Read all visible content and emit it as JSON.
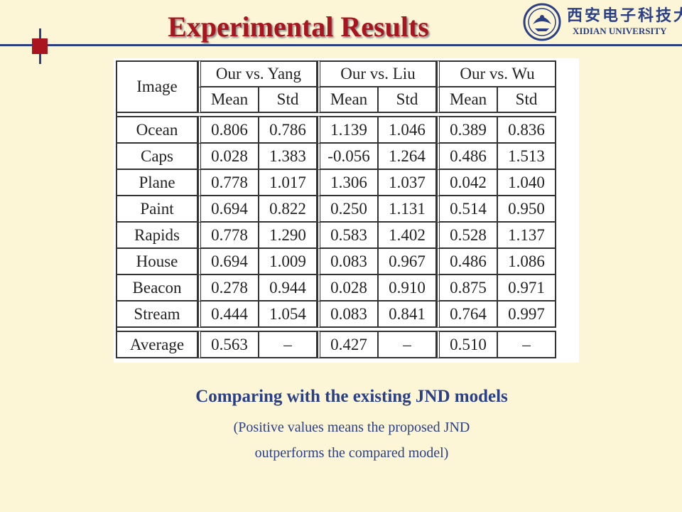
{
  "slide": {
    "title": "Experimental Results",
    "logo": {
      "cn_text": "西安电子科技大学",
      "en_text": "XIDIAN UNIVERSITY"
    },
    "caption": {
      "heading": "Comparing with the existing JND models",
      "line1": "(Positive values means the proposed JND",
      "line2": "outperforms the compared model)"
    },
    "colors": {
      "background": "#fcf6d6",
      "title_red": "#a8151f",
      "accent_blue": "#2a3f86"
    }
  },
  "table": {
    "corner_header": "Image",
    "groups": [
      "Our vs. Yang",
      "Our vs. Liu",
      "Our vs. Wu"
    ],
    "sub_headers": [
      "Mean",
      "Std",
      "Mean",
      "Std",
      "Mean",
      "Std"
    ],
    "rows": [
      {
        "image": "Ocean",
        "cells": [
          "0.806",
          "0.786",
          "1.139",
          "1.046",
          "0.389",
          "0.836"
        ]
      },
      {
        "image": "Caps",
        "cells": [
          "0.028",
          "1.383",
          "-0.056",
          "1.264",
          "0.486",
          "1.513"
        ]
      },
      {
        "image": "Plane",
        "cells": [
          "0.778",
          "1.017",
          "1.306",
          "1.037",
          "0.042",
          "1.040"
        ]
      },
      {
        "image": "Paint",
        "cells": [
          "0.694",
          "0.822",
          "0.250",
          "1.131",
          "0.514",
          "0.950"
        ]
      },
      {
        "image": "Rapids",
        "cells": [
          "0.778",
          "1.290",
          "0.583",
          "1.402",
          "0.528",
          "1.137"
        ]
      },
      {
        "image": "House",
        "cells": [
          "0.694",
          "1.009",
          "0.083",
          "0.967",
          "0.486",
          "1.086"
        ]
      },
      {
        "image": "Beacon",
        "cells": [
          "0.278",
          "0.944",
          "0.028",
          "0.910",
          "0.875",
          "0.971"
        ]
      },
      {
        "image": "Stream",
        "cells": [
          "0.444",
          "1.054",
          "0.083",
          "0.841",
          "0.764",
          "0.997"
        ]
      }
    ],
    "average": {
      "image": "Average",
      "cells": [
        "0.563",
        "–",
        "0.427",
        "–",
        "0.510",
        "–"
      ]
    }
  }
}
